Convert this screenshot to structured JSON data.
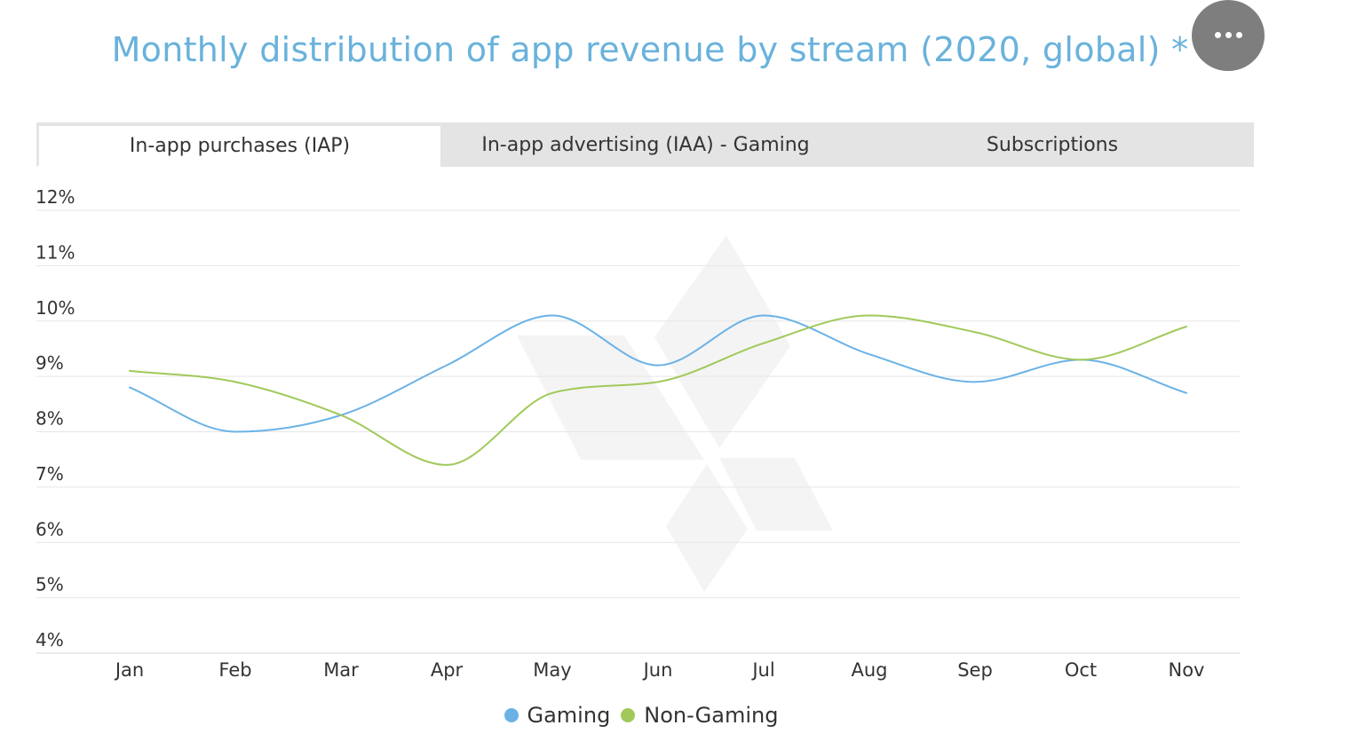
{
  "header": {
    "title": "Monthly distribution of app revenue by stream (2020, global) *",
    "menu_icon": "more-horizontal-icon"
  },
  "tabs": [
    {
      "label": "In-app purchases (IAP)",
      "active": true
    },
    {
      "label": "In-app advertising (IAA) - Gaming",
      "active": false
    },
    {
      "label": "Subscriptions",
      "active": false
    }
  ],
  "watermark_icon": "diamond-logo-icon",
  "chart_data": {
    "type": "line",
    "x": [
      "Jan",
      "Feb",
      "Mar",
      "Apr",
      "May",
      "Jun",
      "Jul",
      "Aug",
      "Sep",
      "Oct",
      "Nov"
    ],
    "y_ticks": [
      "12%",
      "11%",
      "10%",
      "9%",
      "8%",
      "7%",
      "6%",
      "5%",
      "4%"
    ],
    "ylim": [
      4,
      12
    ],
    "grid": true,
    "legend_placement": "bottom",
    "series": [
      {
        "name": "Gaming",
        "color": "#6ab2e6",
        "values": [
          8.8,
          8.0,
          8.3,
          9.2,
          10.1,
          9.2,
          10.1,
          9.4,
          8.9,
          9.3,
          8.7
        ]
      },
      {
        "name": "Non-Gaming",
        "color": "#a0c95a",
        "values": [
          9.1,
          8.9,
          8.3,
          7.4,
          8.7,
          8.9,
          9.6,
          10.1,
          9.8,
          9.3,
          9.9
        ]
      }
    ]
  }
}
